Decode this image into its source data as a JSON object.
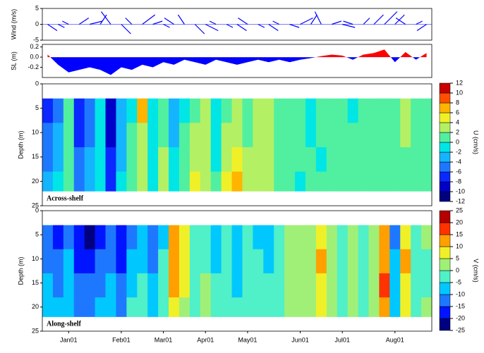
{
  "chart_data": [
    {
      "type": "quiver",
      "ylabel": "Wind (m/s)",
      "color": "#0000ff",
      "ylim": [
        -5,
        5
      ],
      "yticks": [
        -5,
        0,
        5
      ],
      "u": [
        3,
        2,
        -2,
        3,
        4,
        2,
        -3,
        3,
        -2,
        4,
        3,
        2,
        -3,
        -2,
        3,
        4,
        -2,
        2,
        3,
        -3,
        2,
        3,
        -2,
        3,
        4,
        2,
        -2,
        3,
        4,
        -3,
        2,
        3,
        4,
        3,
        -3,
        2,
        -3
      ],
      "v": [
        -2,
        -1,
        1,
        2,
        1,
        3,
        4,
        -3,
        2,
        3,
        1,
        -1,
        2,
        3,
        -3,
        -2,
        1,
        -1,
        -2,
        2,
        -1,
        -2,
        1,
        -1,
        2,
        3,
        4,
        1,
        -1,
        1,
        2,
        3,
        4,
        3,
        2,
        1,
        -2
      ]
    },
    {
      "type": "area",
      "ylabel": "SL (m)",
      "positive_color": "#ff0000",
      "negative_color": "#0000ff",
      "ylim": [
        -0.4,
        0.25
      ],
      "yticks": [
        0.2,
        {
          "value": 0,
          "label": "0.0"
        },
        -0.2
      ],
      "values": [
        0.05,
        -0.15,
        -0.3,
        -0.25,
        -0.2,
        -0.25,
        -0.35,
        -0.2,
        -0.25,
        -0.15,
        -0.2,
        -0.1,
        -0.15,
        -0.05,
        -0.1,
        -0.15,
        -0.05,
        -0.1,
        -0.15,
        -0.1,
        -0.05,
        -0.1,
        -0.05,
        -0.1,
        -0.05,
        -0.02,
        0.02,
        0.05,
        0.03,
        -0.05,
        0.05,
        0.08,
        0.15,
        -0.1,
        0.1,
        -0.05,
        0.08
      ]
    },
    {
      "type": "heatmap",
      "ylabel": "Depth (m)",
      "colorbar_label": "U (cm/s)",
      "annotation": "Across-shelf",
      "ylim": [
        0,
        25
      ],
      "yticks": [
        0,
        5,
        10,
        15,
        20,
        25
      ],
      "y_bins": [
        3,
        8,
        13,
        18,
        22
      ],
      "cticks": [
        -12,
        -10,
        -8,
        -6,
        -4,
        -2,
        0,
        2,
        4,
        6,
        8,
        10,
        12
      ],
      "colors": [
        "#000080",
        "#0000c8",
        "#0a28ff",
        "#1e78ff",
        "#14b4ff",
        "#00e6e6",
        "#50f0a0",
        "#b4f064",
        "#f0f028",
        "#ffb400",
        "#ff5000",
        "#c80000"
      ],
      "values": [
        [
          -7,
          -5,
          0,
          -8,
          -6,
          -2,
          -10,
          -4,
          -1,
          6,
          -2,
          1,
          -3,
          -1,
          1,
          2,
          -2,
          1,
          2,
          1,
          3,
          2,
          1,
          0,
          1,
          -1,
          1,
          0,
          1,
          -1,
          1,
          1,
          0,
          1,
          3,
          1,
          0
        ],
        [
          -6,
          -4,
          1,
          -7,
          -5,
          -2,
          -9,
          -3,
          0,
          3,
          -2,
          1,
          -3,
          0,
          2,
          3,
          -1,
          2,
          3,
          1,
          3,
          2,
          1,
          1,
          0,
          -1,
          1,
          1,
          0,
          1,
          1,
          1,
          1,
          0,
          2,
          1,
          1
        ],
        [
          -5,
          -3,
          0,
          -6,
          -4,
          -1,
          -8,
          -3,
          1,
          2,
          -1,
          2,
          -2,
          0,
          3,
          3,
          -1,
          3,
          4,
          2,
          2,
          3,
          1,
          0,
          1,
          1,
          -1,
          1,
          1,
          0,
          1,
          1,
          1,
          1,
          1,
          1,
          0
        ],
        [
          -4,
          -2,
          1,
          -5,
          -4,
          -1,
          -7,
          -2,
          1,
          2,
          -1,
          3,
          -2,
          1,
          5,
          3,
          0,
          4,
          7,
          2,
          2,
          2,
          1,
          1,
          -1,
          0,
          1,
          0,
          1,
          1,
          0,
          1,
          1,
          1,
          1,
          0,
          1
        ]
      ]
    },
    {
      "type": "heatmap",
      "ylabel": "Depth (m)",
      "colorbar_label": "V (cm/s)",
      "annotation": "Along-shelf",
      "ylim": [
        0,
        25
      ],
      "yticks": [
        0,
        5,
        10,
        15,
        20,
        25
      ],
      "y_bins": [
        3,
        8,
        13,
        18,
        22
      ],
      "cticks": [
        -25,
        -20,
        -15,
        -10,
        -5,
        0,
        5,
        10,
        15,
        20,
        25
      ],
      "colors": [
        "#000080",
        "#0014ff",
        "#1e78ff",
        "#00c8ff",
        "#50f0c8",
        "#a0f078",
        "#f0f028",
        "#ffa000",
        "#ff3200",
        "#b40000"
      ],
      "categories": [
        null,
        null,
        "Jan01",
        null,
        null,
        null,
        null,
        "Feb01",
        null,
        null,
        null,
        "Mar01",
        null,
        null,
        null,
        "Apr01",
        null,
        null,
        null,
        "May01",
        null,
        null,
        null,
        null,
        "Jun01",
        null,
        null,
        null,
        "Jul01",
        null,
        null,
        null,
        null,
        "Aug01",
        null,
        null,
        null
      ],
      "values": [
        [
          -15,
          -18,
          -12,
          -20,
          -22,
          -18,
          -15,
          -20,
          -12,
          -10,
          -15,
          -8,
          12,
          8,
          -5,
          -3,
          -8,
          -5,
          -10,
          -5,
          -7,
          -8,
          -5,
          0,
          2,
          3,
          8,
          0,
          -3,
          2,
          -5,
          0,
          12,
          -12,
          8,
          -5,
          0
        ],
        [
          -12,
          -15,
          -10,
          -18,
          -20,
          -15,
          -12,
          -18,
          -10,
          -8,
          -12,
          -5,
          12,
          5,
          -5,
          -2,
          -8,
          -5,
          -8,
          -5,
          -5,
          -7,
          -5,
          0,
          2,
          3,
          10,
          2,
          -3,
          2,
          -3,
          0,
          12,
          -10,
          10,
          -5,
          -2
        ],
        [
          -10,
          -12,
          -8,
          -15,
          -15,
          -12,
          -10,
          -15,
          -8,
          -5,
          -10,
          -3,
          10,
          5,
          -3,
          0,
          -5,
          -3,
          -8,
          -3,
          -5,
          -5,
          -3,
          2,
          3,
          3,
          8,
          2,
          -2,
          3,
          -3,
          2,
          15,
          -10,
          8,
          -3,
          -2
        ],
        [
          -8,
          -10,
          -8,
          -12,
          -12,
          -10,
          -8,
          -12,
          -5,
          -3,
          -8,
          -2,
          8,
          3,
          -3,
          2,
          -5,
          -3,
          -5,
          -3,
          -3,
          -5,
          -3,
          2,
          3,
          2,
          5,
          3,
          -2,
          3,
          -2,
          2,
          12,
          -8,
          5,
          -3,
          0
        ]
      ]
    }
  ]
}
